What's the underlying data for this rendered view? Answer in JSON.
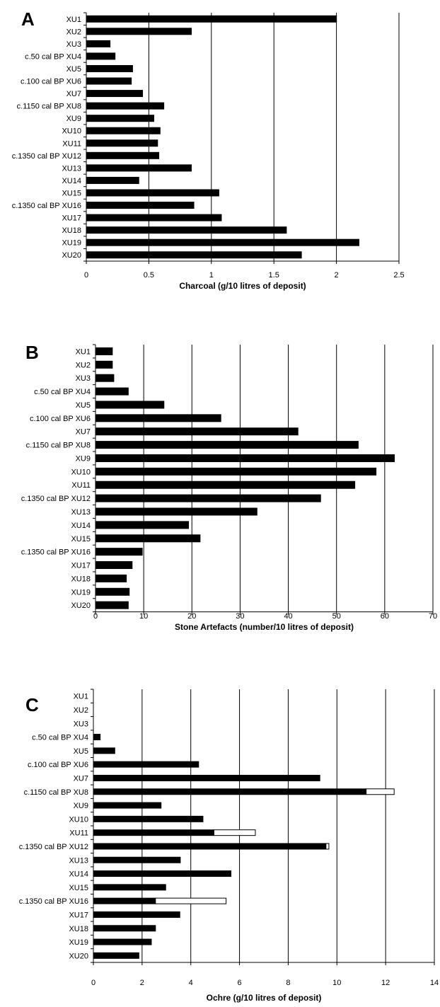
{
  "chart_data": [
    {
      "type": "bar",
      "orientation": "horizontal",
      "panel_label": "A",
      "categories": [
        "XU1",
        "XU2",
        "XU3",
        "XU4",
        "XU5",
        "XU6",
        "XU7",
        "XU8",
        "XU9",
        "XU10",
        "XU11",
        "XU12",
        "XU13",
        "XU14",
        "XU15",
        "XU16",
        "XU17",
        "XU18",
        "XU19",
        "XU20"
      ],
      "date_labels": {
        "XU4": "c.50 cal BP",
        "XU6": "c.100 cal BP",
        "XU8": "c.1150 cal BP",
        "XU12": "c.1350 cal BP",
        "XU16": "c.1350 cal BP"
      },
      "series": [
        {
          "values": [
            2.0,
            0.84,
            0.19,
            0.23,
            0.37,
            0.36,
            0.45,
            0.62,
            0.54,
            0.59,
            0.57,
            0.58,
            0.84,
            0.42,
            1.06,
            0.86,
            1.08,
            1.6,
            2.18,
            1.72
          ]
        }
      ],
      "xlabel": "Charcoal (g/10 litres of deposit)",
      "xlim": [
        0,
        2.5
      ],
      "xticks": [
        0,
        0.5,
        1,
        1.5,
        2,
        2.5
      ],
      "tick_labels": [
        "0",
        "0.5",
        "1",
        "1.5",
        "2",
        "2.5"
      ],
      "grid": true,
      "bar_color": "#000000"
    },
    {
      "type": "bar",
      "orientation": "horizontal",
      "panel_label": "B",
      "categories": [
        "XU1",
        "XU2",
        "XU3",
        "XU4",
        "XU5",
        "XU6",
        "XU7",
        "XU8",
        "XU9",
        "XU10",
        "XU11",
        "XU12",
        "XU13",
        "XU14",
        "XU15",
        "XU16",
        "XU17",
        "XU18",
        "XU19",
        "XU20"
      ],
      "date_labels": {
        "XU4": "c.50 cal BP",
        "XU6": "c.100 cal BP",
        "XU8": "c.1150 cal BP",
        "XU12": "c.1350 cal BP",
        "XU16": "c.1350 cal BP"
      },
      "series": [
        {
          "values": [
            3.5,
            3.5,
            3.8,
            6.8,
            14.2,
            26.0,
            42.0,
            54.5,
            62.0,
            58.2,
            53.8,
            46.7,
            33.5,
            19.3,
            21.7,
            9.7,
            7.6,
            6.4,
            7.0,
            6.8
          ]
        }
      ],
      "xlabel": "Stone Artefacts (number/10 litres of deposit)",
      "xlim": [
        0,
        70
      ],
      "xticks": [
        0,
        10,
        20,
        30,
        40,
        50,
        60,
        70
      ],
      "tick_labels": [
        "0",
        "10",
        "20",
        "30",
        "40",
        "50",
        "60",
        "70"
      ],
      "grid": true,
      "bar_color": "#000000"
    },
    {
      "type": "bar",
      "orientation": "horizontal",
      "stacked": true,
      "panel_label": "C",
      "categories": [
        "XU1",
        "XU2",
        "XU3",
        "XU4",
        "XU5",
        "XU6",
        "XU7",
        "XU8",
        "XU9",
        "XU10",
        "XU11",
        "XU12",
        "XU13",
        "XU14",
        "XU15",
        "XU16",
        "XU17",
        "XU18",
        "XU19",
        "XU20"
      ],
      "date_labels": {
        "XU4": "c.50 cal BP",
        "XU6": "c.100 cal BP",
        "XU8": "c.1150 cal BP",
        "XU12": "c.1350 cal BP",
        "XU16": "c.1350 cal BP"
      },
      "series": [
        {
          "values": [
            0,
            0,
            0,
            0.28,
            0.88,
            4.32,
            9.3,
            11.2,
            2.78,
            4.5,
            4.95,
            9.55,
            3.57,
            5.65,
            2.97,
            2.55,
            3.55,
            2.55,
            2.38,
            1.87
          ],
          "color": "#000000"
        },
        {
          "values": [
            0,
            0,
            0,
            0,
            0,
            0,
            0,
            1.15,
            0,
            0,
            1.7,
            0.12,
            0,
            0,
            0,
            2.9,
            0,
            0,
            0,
            0
          ],
          "color": "#ffffff"
        }
      ],
      "xlabel": "Ochre (g/10 litres of deposit)",
      "xlim": [
        0,
        14
      ],
      "xticks": [
        0,
        2,
        4,
        6,
        8,
        10,
        12,
        14
      ],
      "tick_labels": [
        "0",
        "2",
        "4",
        "6",
        "8",
        "10",
        "12",
        "14"
      ],
      "grid": true
    }
  ]
}
